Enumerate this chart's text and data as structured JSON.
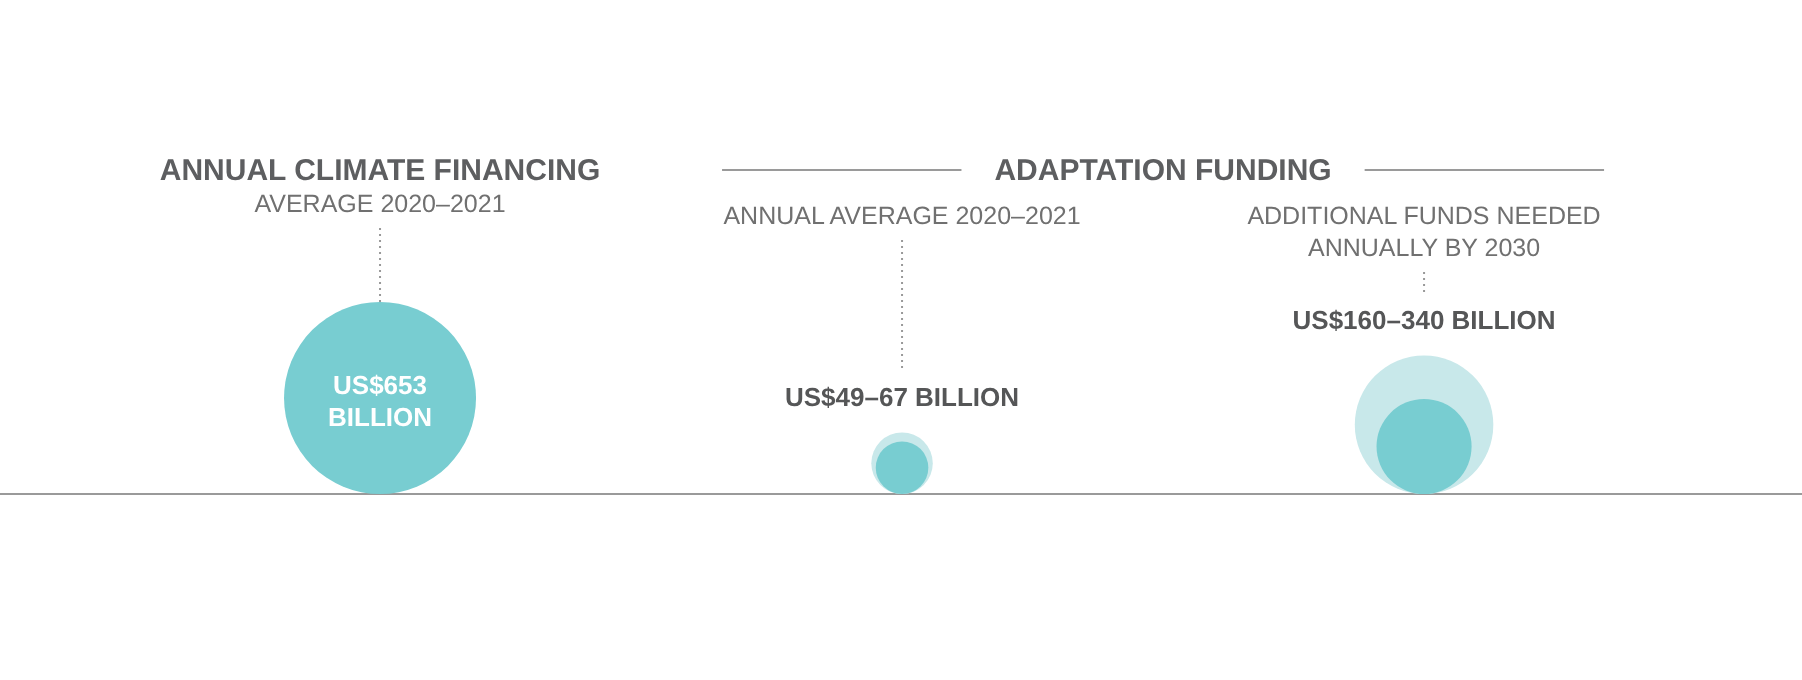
{
  "chart_data": {
    "type": "other",
    "annotations": [
      "ANNUAL CLIMATE FINANCING",
      "ADAPTATION FUNDING"
    ],
    "categories": [
      "AVERAGE 2020–2021",
      "ANNUAL AVERAGE 2020–2021",
      "ADDITIONAL FUNDS NEEDED ANNUALLY BY 2030"
    ],
    "series": [
      {
        "color": "#78cdd1",
        "values": [
          653,
          49,
          160
        ],
        "value_labels": [
          "US$653 BILLION",
          "US$49–",
          "US$160–"
        ]
      },
      {
        "color": "#c8e8ea",
        "values": [
          null,
          67,
          340
        ],
        "value_labels": [
          null,
          "67 BILLION",
          "340 BILLION"
        ]
      }
    ]
  }
}
